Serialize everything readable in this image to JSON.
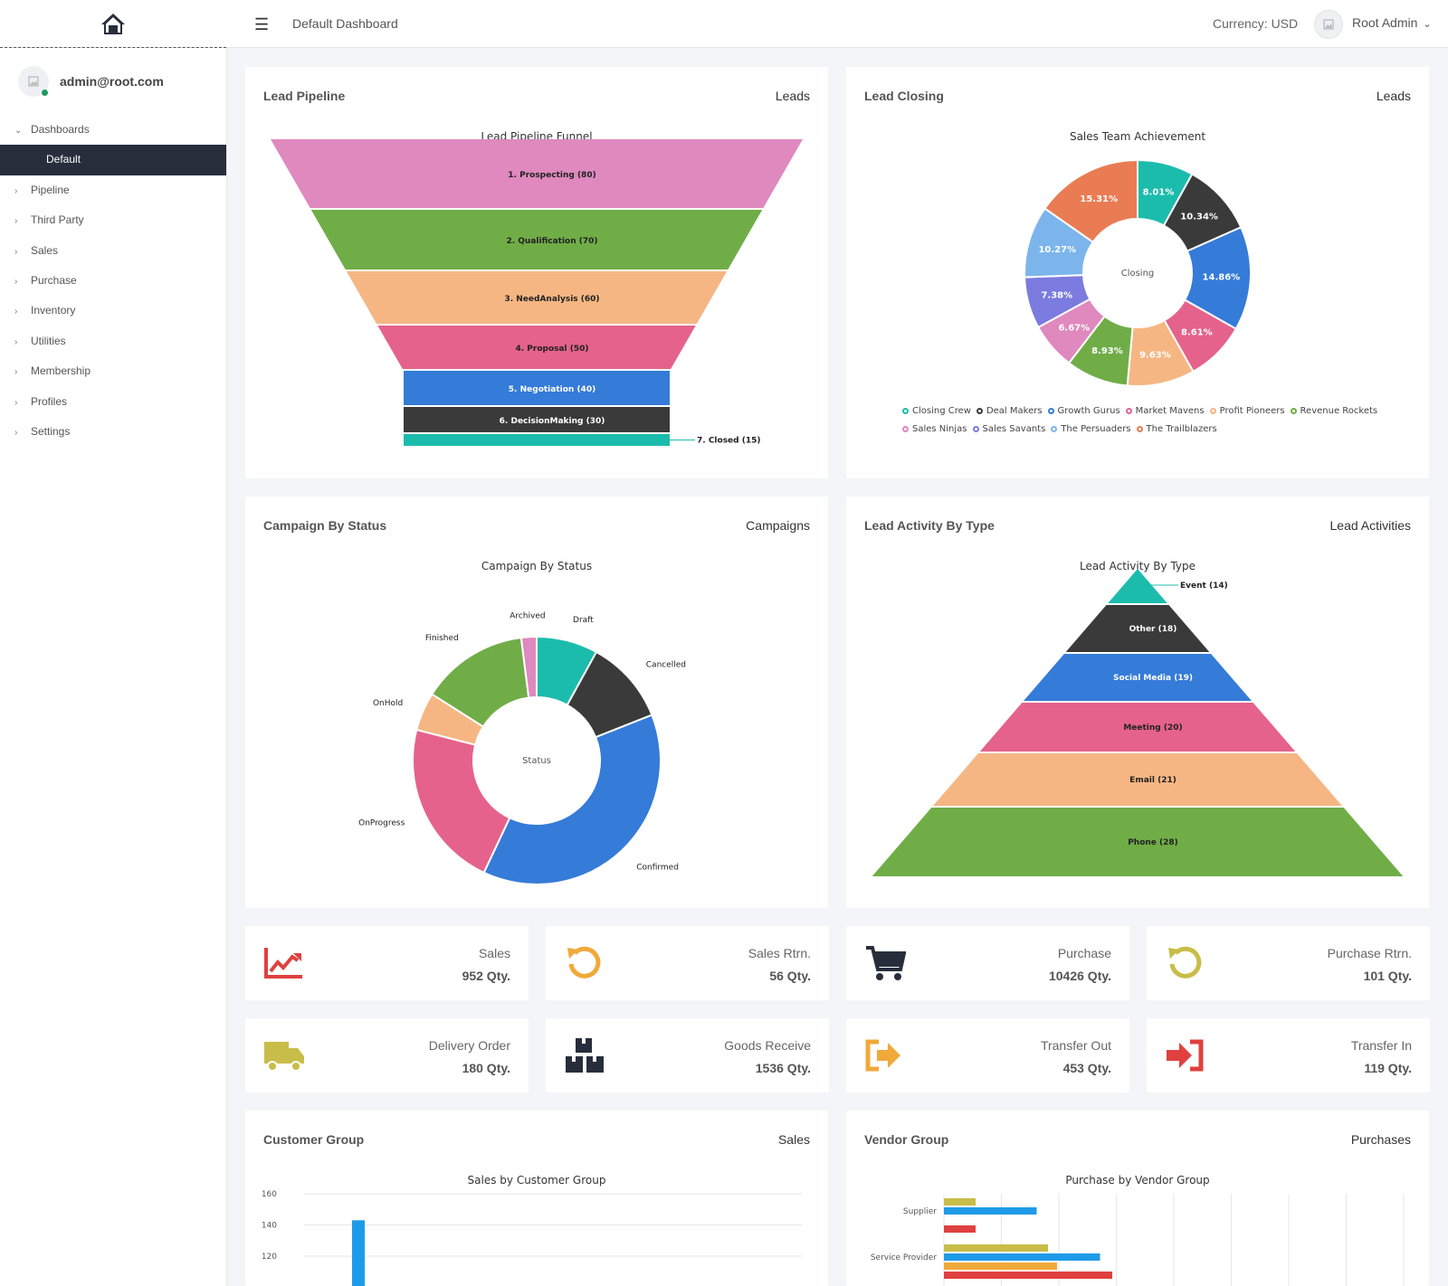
{
  "topbar": {
    "title": "Default Dashboard",
    "currency": "Currency: USD",
    "user": "Root Admin"
  },
  "sidebar": {
    "email": "admin@root.com",
    "items": [
      {
        "label": "Dashboards",
        "expanded": true
      },
      {
        "label": "Default",
        "active": true
      },
      {
        "label": "Pipeline"
      },
      {
        "label": "Third Party"
      },
      {
        "label": "Sales"
      },
      {
        "label": "Purchase"
      },
      {
        "label": "Inventory"
      },
      {
        "label": "Utilities"
      },
      {
        "label": "Membership"
      },
      {
        "label": "Profiles"
      },
      {
        "label": "Settings"
      }
    ]
  },
  "cards": {
    "pipeline": {
      "title": "Lead Pipeline",
      "link": "Leads"
    },
    "closing": {
      "title": "Lead Closing",
      "link": "Leads"
    },
    "campaign": {
      "title": "Campaign By Status",
      "link": "Campaigns"
    },
    "activity": {
      "title": "Lead Activity By Type",
      "link": "Lead Activities"
    },
    "customer": {
      "title": "Customer Group",
      "link": "Sales"
    },
    "vendor": {
      "title": "Vendor Group",
      "link": "Purchases"
    }
  },
  "stats": [
    {
      "label": "Sales",
      "value": "952 Qty.",
      "icon": "chart-line-icon",
      "color": "#e0403f"
    },
    {
      "label": "Sales Rtrn.",
      "value": "56 Qty.",
      "icon": "undo-icon",
      "color": "#f0a93a"
    },
    {
      "label": "Purchase",
      "value": "10426 Qty.",
      "icon": "cart-icon",
      "color": "#272d3b"
    },
    {
      "label": "Purchase Rtrn.",
      "value": "101 Qty.",
      "icon": "undo-icon",
      "color": "#c8bd48"
    },
    {
      "label": "Delivery Order",
      "value": "180 Qty.",
      "icon": "truck-icon",
      "color": "#c8bd48"
    },
    {
      "label": "Goods Receive",
      "value": "1536 Qty.",
      "icon": "boxes-icon",
      "color": "#272d3b"
    },
    {
      "label": "Transfer Out",
      "value": "453 Qty.",
      "icon": "sign-out-icon",
      "color": "#f0a93a"
    },
    {
      "label": "Transfer In",
      "value": "119 Qty.",
      "icon": "sign-in-icon",
      "color": "#e0403f"
    }
  ],
  "chart_data": [
    {
      "type": "funnel",
      "title": "Lead Pipeline Funnel",
      "categories": [
        "1. Prospecting",
        "2. Qualification",
        "3. NeedAnalysis",
        "4. Proposal",
        "5. Negotiation",
        "6. DecisionMaking",
        "7. Closed"
      ],
      "values": [
        80,
        70,
        60,
        50,
        40,
        30,
        15
      ],
      "labels": [
        "1. Prospecting (80)",
        "2. Qualification (70)",
        "3. NeedAnalysis (60)",
        "4. Proposal (50)",
        "5. Negotiation (40)",
        "6. DecisionMaking (30)",
        "7. Closed (15)"
      ],
      "colors": [
        "#df89be",
        "#70ad47",
        "#f5b683",
        "#e5628c",
        "#357bd8",
        "#3a3a3a",
        "#1cbcad"
      ]
    },
    {
      "type": "pie",
      "title": "Sales Team Achievement",
      "center_label": "Closing",
      "categories": [
        "Closing Crew",
        "Deal Makers",
        "Growth Gurus",
        "Market Mavens",
        "Profit Pioneers",
        "Revenue Rockets",
        "Sales Ninjas",
        "Sales Savants",
        "The Persuaders",
        "The Trailblazers"
      ],
      "values": [
        8.01,
        10.34,
        14.86,
        8.61,
        9.63,
        8.93,
        6.67,
        7.38,
        10.27,
        15.31
      ],
      "labels": [
        "8.01%",
        "10.34%",
        "14.86%",
        "8.61%",
        "9.63%",
        "8.93%",
        "6.67%",
        "7.38%",
        "10.27%",
        "15.31%"
      ],
      "colors": [
        "#1cbcad",
        "#3a3a3a",
        "#357bd8",
        "#e5628c",
        "#f5b683",
        "#70ad47",
        "#df89be",
        "#7b7be0",
        "#7cb5ec",
        "#e97c53"
      ],
      "legend": "bottom"
    },
    {
      "type": "pie",
      "title": "Campaign By Status",
      "center_label": "Status",
      "categories": [
        "Draft",
        "Cancelled",
        "Confirmed",
        "OnProgress",
        "OnHold",
        "Finished",
        "Archived"
      ],
      "values": [
        8,
        11,
        38,
        22,
        5,
        14,
        2
      ],
      "colors": [
        "#1cbcad",
        "#3a3a3a",
        "#357bd8",
        "#e5628c",
        "#f5b683",
        "#70ad47",
        "#df89be"
      ]
    },
    {
      "type": "pyramid",
      "title": "Lead Activity By Type",
      "categories": [
        "Event",
        "Other",
        "Social Media",
        "Meeting",
        "Email",
        "Phone"
      ],
      "values": [
        14,
        18,
        19,
        20,
        21,
        28
      ],
      "labels": [
        "Event (14)",
        "Other (18)",
        "Social Media (19)",
        "Meeting (20)",
        "Email (21)",
        "Phone (28)"
      ],
      "colors": [
        "#1cbcad",
        "#3a3a3a",
        "#357bd8",
        "#e5628c",
        "#f5b683",
        "#70ad47"
      ]
    },
    {
      "type": "bar",
      "title": "Sales by Customer Group",
      "yticks": [
        160,
        140,
        120
      ],
      "ylim": [
        0,
        160
      ],
      "series": [
        {
          "values": [
            143
          ],
          "color": "#1e9be8"
        }
      ],
      "grid": true
    },
    {
      "type": "bar",
      "orientation": "horizontal",
      "title": "Purchase by Vendor Group",
      "categories": [
        "Supplier",
        "Service Provider"
      ],
      "series": [
        {
          "values": [
            70,
            230
          ],
          "color": "#c8bd48"
        },
        {
          "values": [
            205,
            345
          ],
          "color": "#1e9be8"
        },
        {
          "values": [
            null,
            250
          ],
          "color": "#f0a93a"
        },
        {
          "values": [
            70,
            372
          ],
          "color": "#e0403f"
        }
      ],
      "grid": true
    }
  ]
}
